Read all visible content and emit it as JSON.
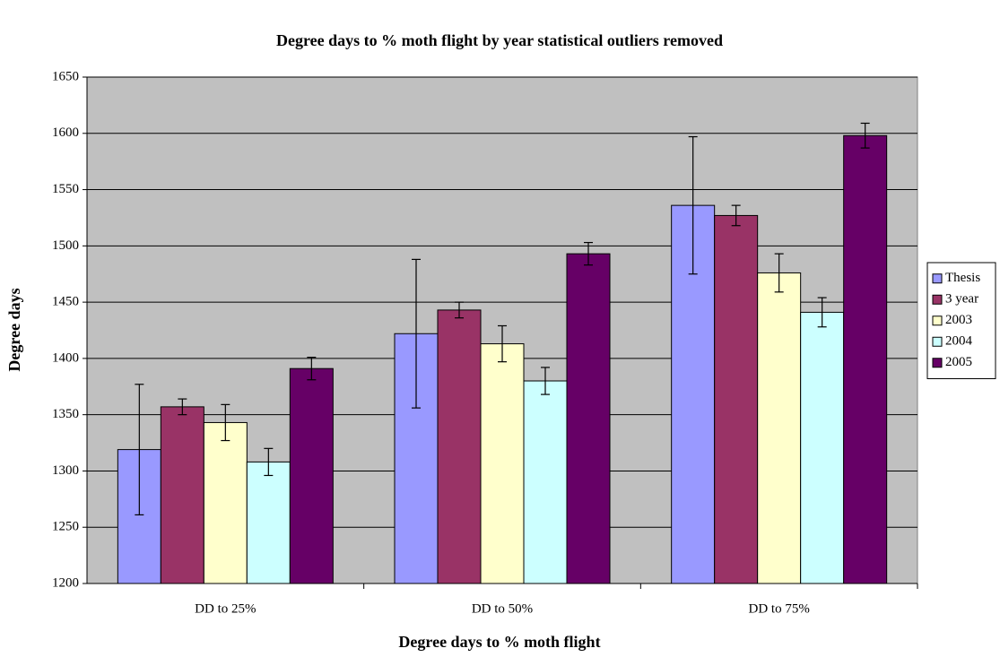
{
  "chart_data": {
    "type": "bar",
    "title": "Degree days to % moth flight by year statistical outliers removed",
    "x_label": "Degree days to % moth flight",
    "y_label": "Degree days",
    "categories": [
      "DD to 25%",
      "DD to 50%",
      "DD to 75%"
    ],
    "series": [
      {
        "name": "Thesis",
        "color": "#9999ff",
        "values": [
          1319,
          1422,
          1536
        ],
        "errors": [
          58,
          66,
          61
        ]
      },
      {
        "name": "3 year",
        "color": "#993366",
        "values": [
          1357,
          1443,
          1527
        ],
        "errors": [
          7,
          7,
          9
        ]
      },
      {
        "name": "2003",
        "color": "#ffffcc",
        "values": [
          1343,
          1413,
          1476
        ],
        "errors": [
          16,
          16,
          17
        ]
      },
      {
        "name": "2004",
        "color": "#ccffff",
        "values": [
          1308,
          1380,
          1441
        ],
        "errors": [
          12,
          12,
          13
        ]
      },
      {
        "name": "2005",
        "color": "#660066",
        "values": [
          1391,
          1493,
          1598
        ],
        "errors": [
          10,
          10,
          11
        ]
      }
    ],
    "ylim": [
      1200,
      1650
    ],
    "yticks": [
      1200,
      1250,
      1300,
      1350,
      1400,
      1450,
      1500,
      1550,
      1600,
      1650
    ],
    "grid": true,
    "legend": "right",
    "plot_background": "#c0c0c0"
  }
}
